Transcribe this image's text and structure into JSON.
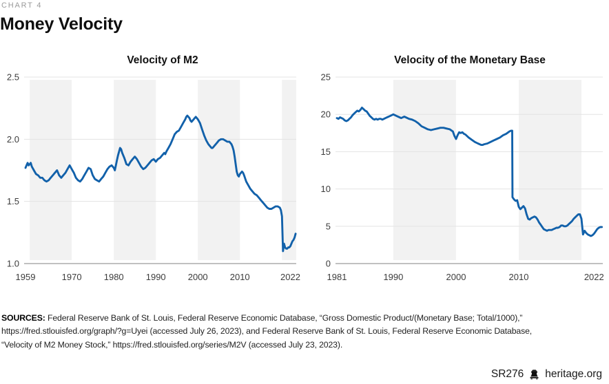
{
  "page": {
    "kicker": "CHART 4",
    "title": "Money Velocity"
  },
  "theme": {
    "line_color": "#1261aa",
    "band_color": "#f2f2f2",
    "grid_color": "#e3e3e3",
    "axis_color": "#9b9b9b",
    "tick_color": "#3c3c3c"
  },
  "chart_data": [
    {
      "type": "line",
      "title": "Velocity of M2",
      "xlabel": "",
      "ylabel": "",
      "x_domain": [
        1959,
        2023.4
      ],
      "y_domain": [
        1.0,
        2.5
      ],
      "grid": true,
      "legend": "none",
      "bands": [
        [
          1960,
          1970
        ],
        [
          1980,
          1990
        ],
        [
          2000,
          2010
        ],
        [
          2020,
          2023.4
        ]
      ],
      "y_ticks": [
        {
          "v": 2.5,
          "label": "2.5"
        },
        {
          "v": 2.0,
          "label": "2.0"
        },
        {
          "v": 1.5,
          "label": "1.5"
        },
        {
          "v": 1.0,
          "label": "1.0"
        }
      ],
      "x_ticks": [
        {
          "x": 1959,
          "label": "1959"
        },
        {
          "x": 1970,
          "label": "1970"
        },
        {
          "x": 1980,
          "label": "1980"
        },
        {
          "x": 1990,
          "label": "1990"
        },
        {
          "x": 2000,
          "label": "2000"
        },
        {
          "x": 2010,
          "label": "2010"
        },
        {
          "x": 2022,
          "label": "2022"
        }
      ],
      "x": [
        1959,
        1959.25,
        1959.5,
        1959.75,
        1960,
        1960.25,
        1960.5,
        1961,
        1961.5,
        1962,
        1962.5,
        1963,
        1963.5,
        1964,
        1964.5,
        1965,
        1965.5,
        1966,
        1966.5,
        1967,
        1967.5,
        1968,
        1968.5,
        1969,
        1969.5,
        1970,
        1970.5,
        1971,
        1971.5,
        1972,
        1972.5,
        1973,
        1973.5,
        1974,
        1974.5,
        1975,
        1975.5,
        1976,
        1976.5,
        1977,
        1977.5,
        1978,
        1978.5,
        1979,
        1979.5,
        1980,
        1980.25,
        1980.5,
        1980.75,
        1981,
        1981.25,
        1981.5,
        1981.75,
        1982,
        1982.5,
        1983,
        1983.5,
        1984,
        1984.5,
        1985,
        1985.5,
        1986,
        1986.5,
        1987,
        1987.5,
        1988,
        1988.5,
        1989,
        1989.5,
        1990,
        1990.5,
        1991,
        1991.5,
        1992,
        1992.25,
        1992.5,
        1993,
        1993.5,
        1994,
        1994.25,
        1994.5,
        1995,
        1995.5,
        1996,
        1996.5,
        1997,
        1997.25,
        1997.5,
        1997.75,
        1998,
        1998.25,
        1998.5,
        1999,
        1999.25,
        1999.5,
        1999.75,
        2000,
        2000.5,
        2001,
        2001.5,
        2002,
        2002.5,
        2003,
        2003.25,
        2003.5,
        2004,
        2004.5,
        2005,
        2005.5,
        2006,
        2006.5,
        2007,
        2007.5,
        2008,
        2008.25,
        2008.5,
        2008.75,
        2009,
        2009.25,
        2009.5,
        2009.75,
        2010,
        2010.5,
        2010.75,
        2011,
        2011.5,
        2012,
        2012.5,
        2013,
        2013.5,
        2014,
        2014.5,
        2015,
        2015.5,
        2016,
        2016.5,
        2017,
        2017.5,
        2018,
        2018.5,
        2019,
        2019.5,
        2019.75,
        2020,
        2020.25,
        2020.5,
        2020.75,
        2021,
        2021.25,
        2021.5,
        2021.75,
        2022,
        2022.25,
        2022.5,
        2022.75,
        2023,
        2023.25
      ],
      "y": [
        1.77,
        1.79,
        1.81,
        1.79,
        1.8,
        1.81,
        1.78,
        1.75,
        1.72,
        1.71,
        1.69,
        1.69,
        1.67,
        1.66,
        1.67,
        1.69,
        1.71,
        1.73,
        1.75,
        1.71,
        1.69,
        1.71,
        1.73,
        1.76,
        1.79,
        1.76,
        1.73,
        1.69,
        1.67,
        1.66,
        1.68,
        1.71,
        1.74,
        1.77,
        1.76,
        1.71,
        1.68,
        1.67,
        1.66,
        1.68,
        1.7,
        1.73,
        1.76,
        1.78,
        1.79,
        1.77,
        1.75,
        1.79,
        1.83,
        1.87,
        1.9,
        1.93,
        1.92,
        1.89,
        1.85,
        1.8,
        1.79,
        1.82,
        1.84,
        1.86,
        1.84,
        1.81,
        1.78,
        1.76,
        1.77,
        1.79,
        1.81,
        1.83,
        1.84,
        1.82,
        1.84,
        1.85,
        1.87,
        1.89,
        1.88,
        1.9,
        1.93,
        1.96,
        2.0,
        2.02,
        2.04,
        2.06,
        2.07,
        2.1,
        2.13,
        2.16,
        2.18,
        2.19,
        2.18,
        2.17,
        2.15,
        2.14,
        2.16,
        2.17,
        2.18,
        2.17,
        2.16,
        2.13,
        2.08,
        2.03,
        1.99,
        1.96,
        1.94,
        1.93,
        1.93,
        1.95,
        1.97,
        1.99,
        2.0,
        2.0,
        1.99,
        1.98,
        1.98,
        1.96,
        1.94,
        1.91,
        1.86,
        1.8,
        1.74,
        1.71,
        1.7,
        1.72,
        1.74,
        1.73,
        1.71,
        1.66,
        1.63,
        1.6,
        1.58,
        1.56,
        1.55,
        1.53,
        1.51,
        1.49,
        1.47,
        1.45,
        1.44,
        1.44,
        1.45,
        1.46,
        1.46,
        1.45,
        1.43,
        1.38,
        1.1,
        1.16,
        1.13,
        1.12,
        1.12,
        1.13,
        1.13,
        1.14,
        1.16,
        1.18,
        1.19,
        1.21,
        1.24
      ]
    },
    {
      "type": "line",
      "title": "Velocity of the Monetary Base",
      "xlabel": "",
      "ylabel": "",
      "x_domain": [
        1981,
        2023.4
      ],
      "y_domain": [
        0,
        25
      ],
      "grid": true,
      "legend": "none",
      "bands": [
        [
          1990,
          2000
        ],
        [
          2010,
          2020
        ]
      ],
      "y_ticks": [
        {
          "v": 25,
          "label": "25"
        },
        {
          "v": 20,
          "label": "20"
        },
        {
          "v": 15,
          "label": "15"
        },
        {
          "v": 10,
          "label": "10"
        },
        {
          "v": 5,
          "label": "5"
        },
        {
          "v": 0,
          "label": "0"
        }
      ],
      "x_ticks": [
        {
          "x": 1981,
          "label": "1981"
        },
        {
          "x": 1990,
          "label": "1990"
        },
        {
          "x": 2000,
          "label": "2000"
        },
        {
          "x": 2010,
          "label": "2010"
        },
        {
          "x": 2022,
          "label": "2022"
        }
      ],
      "x": [
        1981,
        1981.25,
        1981.5,
        1981.75,
        1982,
        1982.25,
        1982.5,
        1982.75,
        1983,
        1983.25,
        1983.5,
        1983.75,
        1984,
        1984.25,
        1984.5,
        1984.75,
        1985,
        1985.25,
        1985.5,
        1985.75,
        1986,
        1986.25,
        1986.5,
        1986.75,
        1987,
        1987.25,
        1987.5,
        1987.75,
        1988,
        1988.25,
        1988.5,
        1988.75,
        1989,
        1989.25,
        1989.5,
        1989.75,
        1990,
        1990.25,
        1990.5,
        1991,
        1991.25,
        1991.5,
        1991.75,
        1992,
        1992.5,
        1993,
        1993.5,
        1994,
        1994.5,
        1995,
        1995.5,
        1996,
        1996.5,
        1997,
        1997.5,
        1998,
        1998.5,
        1999,
        1999.5,
        1999.75,
        2000,
        2000.25,
        2000.5,
        2000.75,
        2001,
        2001.25,
        2001.5,
        2002,
        2002.5,
        2003,
        2003.5,
        2004,
        2004.25,
        2004.5,
        2005,
        2005.5,
        2006,
        2006.5,
        2007,
        2007.5,
        2008,
        2008.5,
        2008.75,
        2008.95,
        2009,
        2009.25,
        2009.5,
        2009.75,
        2010,
        2010.25,
        2010.5,
        2010.75,
        2011,
        2011.25,
        2011.5,
        2011.75,
        2012,
        2012.25,
        2012.5,
        2012.75,
        2013,
        2013.25,
        2013.5,
        2013.75,
        2014,
        2014.25,
        2014.5,
        2014.75,
        2015,
        2015.25,
        2015.5,
        2015.75,
        2016,
        2016.25,
        2016.5,
        2016.75,
        2017,
        2017.25,
        2017.5,
        2017.75,
        2018,
        2018.25,
        2018.5,
        2018.75,
        2019,
        2019.25,
        2019.5,
        2019.75,
        2020,
        2020.25,
        2020.5,
        2020.75,
        2021,
        2021.25,
        2021.5,
        2021.75,
        2022,
        2022.25,
        2022.5,
        2022.75,
        2023,
        2023.25
      ],
      "y": [
        19.5,
        19.4,
        19.6,
        19.5,
        19.4,
        19.2,
        19.1,
        19.2,
        19.4,
        19.6,
        19.9,
        20.1,
        20.3,
        20.5,
        20.4,
        20.6,
        20.9,
        20.7,
        20.5,
        20.4,
        20.1,
        19.8,
        19.6,
        19.4,
        19.3,
        19.4,
        19.3,
        19.4,
        19.4,
        19.3,
        19.4,
        19.5,
        19.6,
        19.7,
        19.8,
        19.9,
        20.0,
        19.9,
        19.8,
        19.6,
        19.5,
        19.6,
        19.7,
        19.6,
        19.4,
        19.3,
        19.1,
        18.8,
        18.4,
        18.2,
        18.0,
        17.9,
        18.0,
        18.1,
        18.2,
        18.2,
        18.1,
        18.0,
        17.7,
        17.1,
        16.7,
        17.2,
        17.6,
        17.5,
        17.6,
        17.4,
        17.3,
        16.9,
        16.6,
        16.3,
        16.1,
        15.9,
        15.9,
        16.0,
        16.1,
        16.3,
        16.5,
        16.7,
        16.9,
        17.2,
        17.4,
        17.7,
        17.8,
        17.8,
        8.9,
        8.6,
        8.4,
        8.5,
        7.6,
        7.3,
        7.5,
        7.7,
        7.4,
        6.6,
        6.0,
        5.9,
        6.1,
        6.2,
        6.3,
        6.2,
        5.9,
        5.5,
        5.2,
        4.9,
        4.6,
        4.5,
        4.4,
        4.5,
        4.5,
        4.5,
        4.6,
        4.7,
        4.8,
        4.8,
        4.9,
        5.1,
        5.1,
        5.0,
        5.0,
        5.1,
        5.3,
        5.5,
        5.7,
        6.0,
        6.2,
        6.4,
        6.6,
        6.6,
        6.0,
        3.9,
        4.4,
        4.1,
        3.9,
        3.8,
        3.7,
        3.8,
        4.0,
        4.3,
        4.6,
        4.8,
        4.9,
        4.9
      ]
    }
  ],
  "sources": {
    "label": "SOURCES:",
    "line1": " Federal Reserve Bank of St. Louis, Federal Reserve Economic Database, “Gross Domestic Product/(Monetary Base; Total/1000),”",
    "line2": "https://fred.stlouisfed.org/graph/?g=Uyei (accessed July 26, 2023), and Federal Reserve Bank of St. Louis, Federal Reserve Economic Database,",
    "line3": "“Velocity of M2 Money Stock,” https://fred.stlouisfed.org/series/M2V (accessed July 23, 2023)."
  },
  "footer": {
    "report_id": "SR276",
    "site": "heritage.org",
    "bell_icon": "liberty-bell-icon"
  }
}
